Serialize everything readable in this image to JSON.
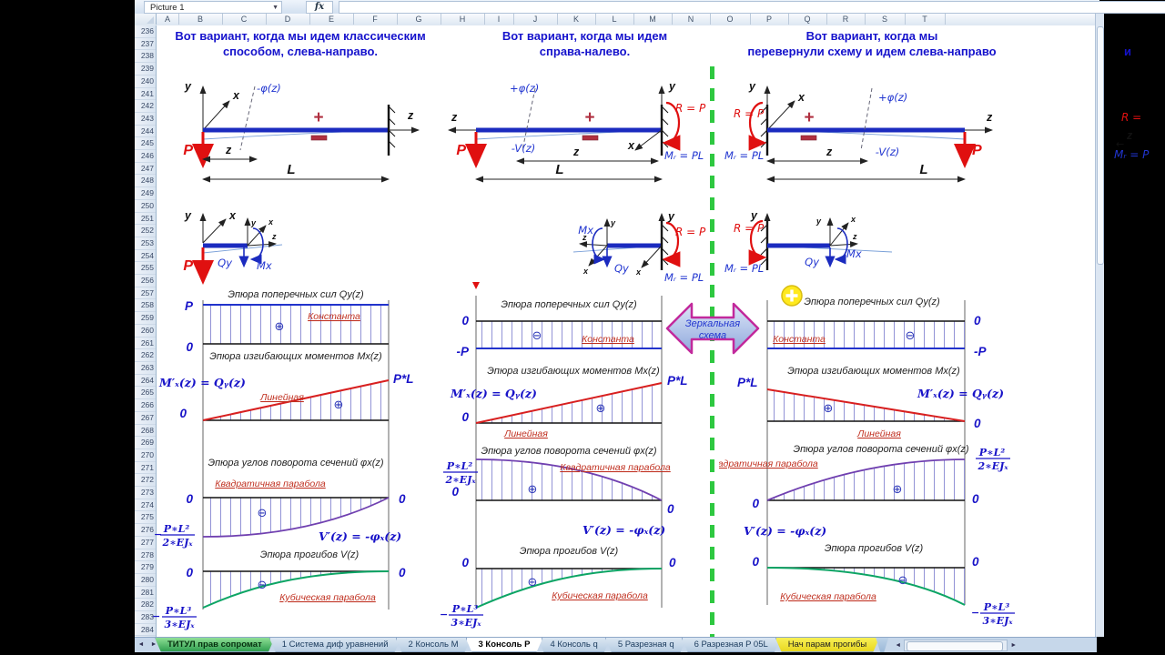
{
  "chrome": {
    "name_box": "Picture 1",
    "fx": "fx",
    "col_headers": [
      "A",
      "B",
      "C",
      "D",
      "E",
      "F",
      "G",
      "H",
      "I",
      "J",
      "K",
      "L",
      "M",
      "N",
      "O",
      "P",
      "Q",
      "R",
      "S",
      "T"
    ],
    "row_first": 236,
    "row_count": 49,
    "nav_prev": "◄",
    "nav_next": "►",
    "hs_left": "◄",
    "hs_right": "►",
    "tabs": [
      {
        "label": "ТИТУЛ прав сопромат",
        "style": "green"
      },
      {
        "label": "1 Система диф уравнений",
        "style": "normal"
      },
      {
        "label": "2 Консоль M",
        "style": "normal"
      },
      {
        "label": "3 Консоль P",
        "style": "active"
      },
      {
        "label": "4 Консоль q",
        "style": "normal"
      },
      {
        "label": "5 Разрезная q",
        "style": "normal"
      },
      {
        "label": "6 Разрезная P 05L",
        "style": "normal"
      },
      {
        "label": "Нач парам прогибы",
        "style": "yellow"
      }
    ]
  },
  "titles": {
    "left1": "Вот вариант, когда мы идем классическим",
    "left2": "способом, слева-направо.",
    "mid1": "Вот вариант, когда мы идем",
    "mid2": "справа-налево.",
    "right1": "Вот вариант, когда мы",
    "right2": "перевернули схему и идем слева-направо",
    "cut": "и"
  },
  "mirror1": "Зеркальная",
  "mirror2": "схема",
  "d": {
    "qy_title": "Эпюра поперечных сил Qy(z)",
    "mx_title": "Эпюра изгибающих моментов Mx(z)",
    "phi_title": "Эпюра углов поворота сечений φx(z)",
    "v_title": "Эпюра прогибов V(z)",
    "konst": "Константа",
    "lin": "Линейная",
    "quad": "Квадратичная парабола",
    "cub": "Кубическая парабола",
    "mx_f": "M′ₓ(z) = Qᵧ(z)",
    "v_f": "V′(z) = -φₓ(z)",
    "plus": "⊕",
    "minus": "⊖",
    "P": "P",
    "zero": "0",
    "negP": "-P",
    "PL": "P*L",
    "fr_minus": "−",
    "phi_num": "P∗L²",
    "phi_den": "2∗EJₓ",
    "v_num": "P∗L³",
    "v_den": "3∗EJₓ",
    "y": "y",
    "x": "x",
    "z": "z",
    "L": "L",
    "phi_neg": "-φ(z)",
    "phi_pos": "+φ(z)",
    "v_neg": "-V(z)",
    "Qy": "Qy",
    "Mx": "Mx",
    "ReqP": "R = P",
    "MreqPL": "Mᵣ = PL",
    "plus_sign": "+",
    "cut_R": "R =",
    "cut_z": "z",
    "cut_arrow": "←",
    "cut_M": "Mᵣ = P"
  }
}
